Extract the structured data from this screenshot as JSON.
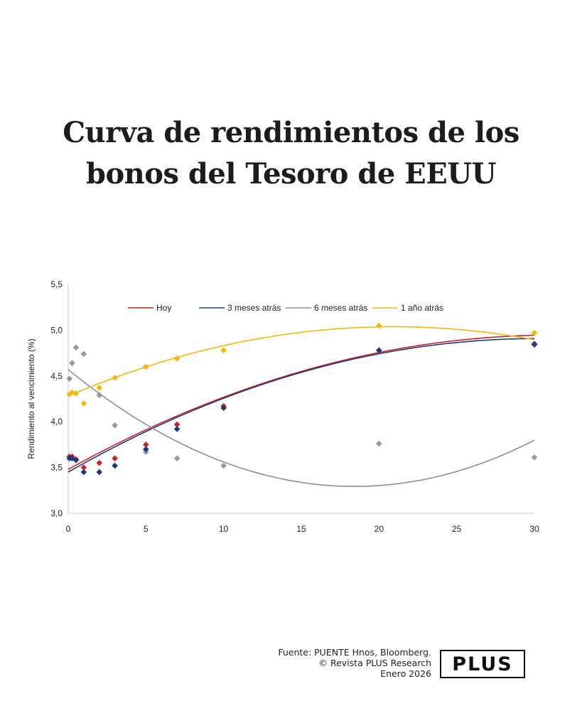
{
  "title_line1": "Curva de rendimientos de los",
  "title_line2": "bonos del Tesoro de EEUU",
  "chart_data": {
    "type": "scatter",
    "ylabel": "Rendimiento al vencimiento (%)",
    "xlabel": "",
    "xlim": [
      0,
      30
    ],
    "ylim": [
      3.0,
      5.5
    ],
    "xticks": [
      "0",
      "5",
      "10",
      "15",
      "20",
      "25",
      "30"
    ],
    "yticks": [
      "3,0",
      "3,5",
      "4,0",
      "4,5",
      "5,0",
      "5,5"
    ],
    "legend_position": "top",
    "grid": false,
    "series": [
      {
        "name": "Hoy",
        "color": "#c0262d",
        "points": [
          [
            0.08,
            3.62
          ],
          [
            0.25,
            3.62
          ],
          [
            0.5,
            3.59
          ],
          [
            1,
            3.5
          ],
          [
            2,
            3.55
          ],
          [
            3,
            3.6
          ],
          [
            5,
            3.75
          ],
          [
            7,
            3.97
          ],
          [
            10,
            4.17
          ],
          [
            20,
            4.78
          ],
          [
            30,
            4.84
          ]
        ],
        "trend": [
          3.48,
          0.0938,
          -0.0015
        ]
      },
      {
        "name": "3 meses atrás",
        "color": "#1f3a7a",
        "points": [
          [
            0.08,
            3.6
          ],
          [
            0.25,
            3.6
          ],
          [
            0.5,
            3.58
          ],
          [
            1,
            3.45
          ],
          [
            2,
            3.45
          ],
          [
            3,
            3.52
          ],
          [
            5,
            3.7
          ],
          [
            7,
            3.92
          ],
          [
            10,
            4.15
          ],
          [
            20,
            4.78
          ],
          [
            30,
            4.85
          ]
        ],
        "trend": [
          3.45,
          0.0966,
          -0.0016
        ]
      },
      {
        "name": "6 meses atrás",
        "color": "#8f8f8f",
        "points": [
          [
            0.08,
            4.47
          ],
          [
            0.25,
            4.64
          ],
          [
            0.5,
            4.81
          ],
          [
            1,
            4.74
          ],
          [
            2,
            4.29
          ],
          [
            3,
            3.96
          ],
          [
            5,
            3.67
          ],
          [
            7,
            3.6
          ],
          [
            10,
            3.52
          ],
          [
            20,
            3.76
          ],
          [
            30,
            3.61
          ]
        ],
        "trend": [
          4.57,
          -0.1386,
          0.003763
        ]
      },
      {
        "name": "1 año atrás",
        "color": "#f0b810",
        "points": [
          [
            0.08,
            4.3
          ],
          [
            0.25,
            4.32
          ],
          [
            0.5,
            4.31
          ],
          [
            1,
            4.2
          ],
          [
            2,
            4.37
          ],
          [
            3,
            4.48
          ],
          [
            5,
            4.6
          ],
          [
            7,
            4.69
          ],
          [
            10,
            4.78
          ],
          [
            20,
            5.05
          ],
          [
            30,
            4.97
          ]
        ],
        "trend": [
          4.28,
          0.0724,
          -0.00173
        ]
      }
    ]
  },
  "footer": {
    "line1": "Fuente: PUENTE Hnos, Bloomberg.",
    "line2": "© Revista PLUS Research",
    "line3": "Enero 2026"
  },
  "logo_text": "PLUS"
}
